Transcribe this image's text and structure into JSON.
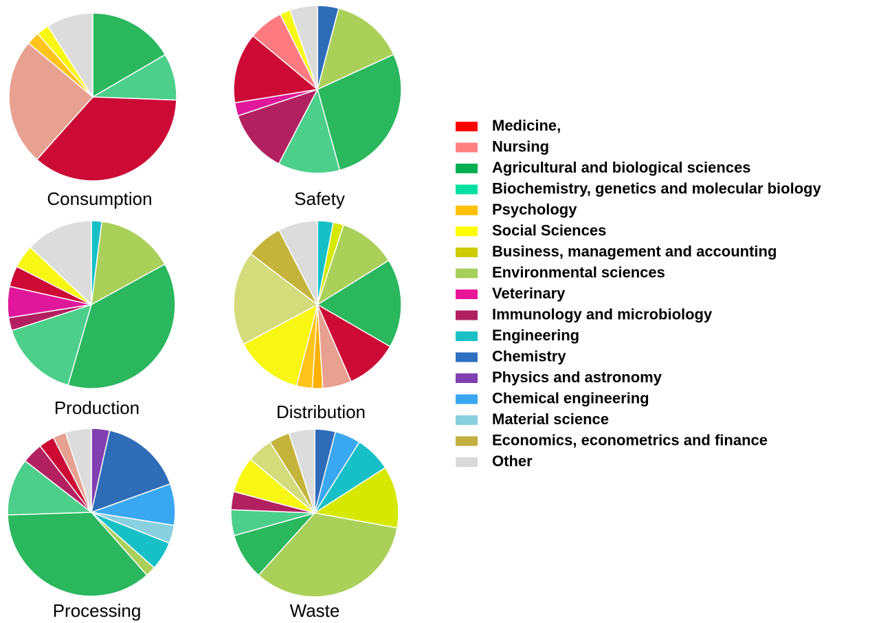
{
  "chart_data": [
    {
      "type": "pie",
      "title": "Consumption",
      "values": [
        16.6,
        9,
        36,
        24.5,
        2.5,
        2.4,
        9
      ],
      "colors": [
        "#2ab75e",
        "#4ccf8a",
        "#cc0a35",
        "#e8a090",
        "#ffc319",
        "#f7f713",
        "#dcdcdc"
      ]
    },
    {
      "type": "pie",
      "title": "Safety",
      "values": [
        4,
        13.8,
        27,
        11.7,
        12,
        2.5,
        13.3,
        6.5,
        2,
        5.2
      ],
      "colors": [
        "#2e6cb8",
        "#aad05a",
        "#2ab75e",
        "#4ccf8a",
        "#b32060",
        "#e0179a",
        "#cc0a35",
        "#fd7a80",
        "#f7f713",
        "#dcdcdc"
      ]
    },
    {
      "type": "pie",
      "title": "Production",
      "values": [
        2,
        15,
        37.5,
        15.5,
        2.5,
        6,
        4,
        4.5,
        13
      ],
      "colors": [
        "#17c0c6",
        "#aad05a",
        "#2ab75e",
        "#4ccf8a",
        "#b32060",
        "#e0179a",
        "#cc0a35",
        "#f7f713",
        "#dcdcdc"
      ]
    },
    {
      "type": "pie",
      "title": "Distribution",
      "values": [
        3,
        2,
        11,
        17,
        10,
        5.5,
        2,
        3,
        13,
        18,
        7,
        7.5
      ],
      "colors": [
        "#17c0c6",
        "#d6e800",
        "#aad05a",
        "#2ab75e",
        "#cc0a35",
        "#e8a090",
        "#ffb000",
        "#ffc319",
        "#f7f713",
        "#d4db7a",
        "#c4b43c",
        "#dcdcdc"
      ]
    },
    {
      "type": "pie",
      "title": "Processing",
      "values": [
        3.5,
        16,
        8,
        3.5,
        5.5,
        2,
        36,
        11,
        4,
        3,
        2.5,
        5
      ],
      "colors": [
        "#8040b0",
        "#2e6cb8",
        "#3aa8f0",
        "#88d0e0",
        "#17c0c6",
        "#aad05a",
        "#2ab75e",
        "#4ccf8a",
        "#b32060",
        "#cc0a35",
        "#e8a090",
        "#dcdcdc"
      ]
    },
    {
      "type": "pie",
      "title": "Waste",
      "values": [
        4,
        5,
        7,
        12,
        34,
        9,
        5,
        3.5,
        7,
        5,
        4,
        5
      ],
      "colors": [
        "#2e6cb8",
        "#3aa8f0",
        "#17c0c6",
        "#d6e800",
        "#aad05a",
        "#2ab75e",
        "#4ccf8a",
        "#b32060",
        "#f7f713",
        "#d4db7a",
        "#c4b43c",
        "#dcdcdc"
      ]
    },
    {
      "type": "legend",
      "labels": [
        "Medicine,",
        "Nursing",
        "Agricultural  and biological sciences",
        "Biochemistry,  genetics and molecular biology",
        "Psychology",
        "Social Sciences",
        "Business, management and accounting",
        "Environmental sciences",
        "Veterinary",
        "Immunology  and microbiology",
        "Engineering",
        "Chemistry",
        "Physics and astronomy",
        "Chemical engineering",
        "Material science",
        "Economics, econometrics and finance",
        "Other"
      ],
      "colors": [
        "#ff0000",
        "#ff8080",
        "#00b050",
        "#00e0a0",
        "#ffc000",
        "#ffff00",
        "#cccc00",
        "#a6d05a",
        "#e8179a",
        "#b0205f",
        "#1ac0c6",
        "#2e6fc0",
        "#8040b0",
        "#3aa8f0",
        "#88d0e0",
        "#c0b040",
        "#d9d9d9"
      ]
    }
  ]
}
